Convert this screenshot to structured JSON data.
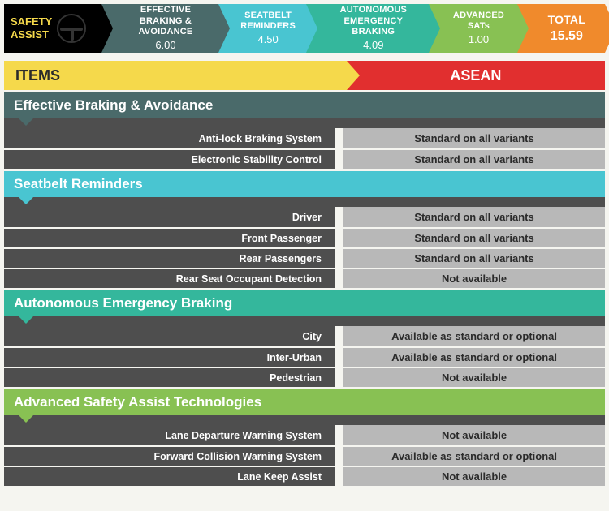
{
  "topbar": {
    "safety_assist_label": "SAFETY\nASSIST",
    "items": [
      {
        "title": "EFFECTIVE BRAKING & AVOIDANCE",
        "value": "6.00"
      },
      {
        "title": "SEATBELT REMINDERS",
        "value": "4.50"
      },
      {
        "title": "AUTONOMOUS EMERGENCY BRAKING",
        "value": "4.09"
      },
      {
        "title": "ADVANCED SATs",
        "value": "1.00"
      }
    ],
    "total_label": "TOTAL",
    "total_value": "15.59"
  },
  "colors": {
    "safety_assist_bg": "#000000",
    "safety_assist_text": "#f5d94b",
    "eba": "#4a6a6a",
    "seatbelt": "#49c5d1",
    "aeb": "#34b79c",
    "sat": "#88c153",
    "total": "#f08a2c",
    "items_header_bg": "#f5d94b",
    "asean_header_bg": "#e12f2f",
    "row_label_bg": "#4e4e4e",
    "row_value_bg": "#b8b8b8",
    "page_bg": "#f5f5f0"
  },
  "header": {
    "items_label": "ITEMS",
    "asean_label": "ASEAN"
  },
  "sections": [
    {
      "key": "eba",
      "title": "Effective Braking & Avoidance",
      "rows": [
        {
          "label": "Anti-lock Braking System",
          "value": "Standard on all variants"
        },
        {
          "label": "Electronic Stability Control",
          "value": "Standard on all variants"
        }
      ]
    },
    {
      "key": "sb",
      "title": "Seatbelt Reminders",
      "rows": [
        {
          "label": "Driver",
          "value": "Standard on all variants"
        },
        {
          "label": "Front Passenger",
          "value": "Standard on all variants"
        },
        {
          "label": "Rear Passengers",
          "value": "Standard on all variants"
        },
        {
          "label": "Rear Seat Occupant Detection",
          "value": "Not available"
        }
      ]
    },
    {
      "key": "aeb",
      "title": "Autonomous Emergency Braking",
      "rows": [
        {
          "label": "City",
          "value": "Available as standard or optional"
        },
        {
          "label": "Inter-Urban",
          "value": "Available as standard or optional"
        },
        {
          "label": "Pedestrian",
          "value": "Not available"
        }
      ]
    },
    {
      "key": "sat",
      "title": "Advanced Safety Assist Technologies",
      "rows": [
        {
          "label": "Lane Departure Warning System",
          "value": "Not available"
        },
        {
          "label": "Forward Collision Warning System",
          "value": "Available as standard or optional"
        },
        {
          "label": "Lane Keep Assist",
          "value": "Not available"
        }
      ]
    }
  ]
}
